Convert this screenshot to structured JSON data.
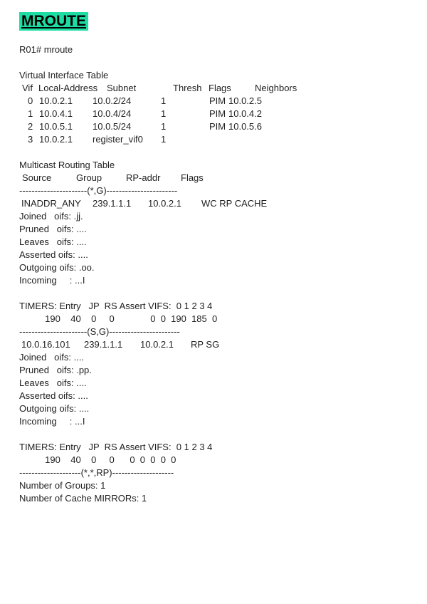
{
  "colors": {
    "title_highlight": "#1edda4",
    "text": "#1f1f1f",
    "background": "#ffffff"
  },
  "title": {
    "text": "MROUTE"
  },
  "prompt": "R01# mroute",
  "vif_table": {
    "title": "Virtual Interface Table",
    "headers": [
      "Vif",
      "Local-Address",
      "Subnet",
      "Thresh",
      "Flags",
      "Neighbors"
    ],
    "rows": [
      [
        "0",
        "10.0.2.1",
        "10.0.2/24",
        "1",
        "PIM",
        "10.0.2.5"
      ],
      [
        "1",
        "10.0.4.1",
        "10.0.4/24",
        "1",
        "PIM",
        "10.0.4.2"
      ],
      [
        "2",
        "10.0.5.1",
        "10.0.5/24",
        "1",
        "PIM",
        "10.0.5.6"
      ],
      [
        "3",
        "10.0.2.1",
        "register_vif0",
        "1",
        "",
        ""
      ]
    ]
  },
  "mroute_table": {
    "title": "Multicast Routing Table",
    "headers": [
      "Source",
      "Group",
      "RP-addr",
      "Flags"
    ],
    "star_g": {
      "divider": "----------------------(*,G)-----------------------",
      "entry": [
        "INADDR_ANY",
        "239.1.1.1",
        "10.0.2.1",
        "WC RP CACHE"
      ],
      "oifs_lines": [
        "Joined   oifs: .jj.",
        "Pruned   oifs: ....",
        "Leaves   oifs: ....",
        "Asserted oifs: ....",
        "Outgoing oifs: .oo.",
        "Incoming     : ...I"
      ],
      "timers_header": "TIMERS: Entry   JP  RS Assert VIFS:  0 1 2 3 4",
      "timers_values": "          190    40    0     0              0  0  190  185  0"
    },
    "s_g": {
      "divider": "----------------------(S,G)-----------------------",
      "entry": [
        "10.0.16.101",
        "239.1.1.1",
        "10.0.2.1",
        "RP SG"
      ],
      "oifs_lines": [
        "Joined   oifs: ....",
        "Pruned   oifs: .pp.",
        "Leaves   oifs: ....",
        "Asserted oifs: ....",
        "Outgoing oifs: ....",
        "Incoming     : ...I"
      ],
      "timers_header": "TIMERS: Entry   JP  RS Assert VIFS:  0 1 2 3 4",
      "timers_values": "          190    40    0     0      0  0  0  0  0"
    },
    "star_star_rp": {
      "divider": "--------------------(*,*,RP)--------------------"
    },
    "summary": {
      "groups": "Number of Groups: 1",
      "cache_mirrors": "Number of Cache MIRRORs: 1"
    }
  }
}
